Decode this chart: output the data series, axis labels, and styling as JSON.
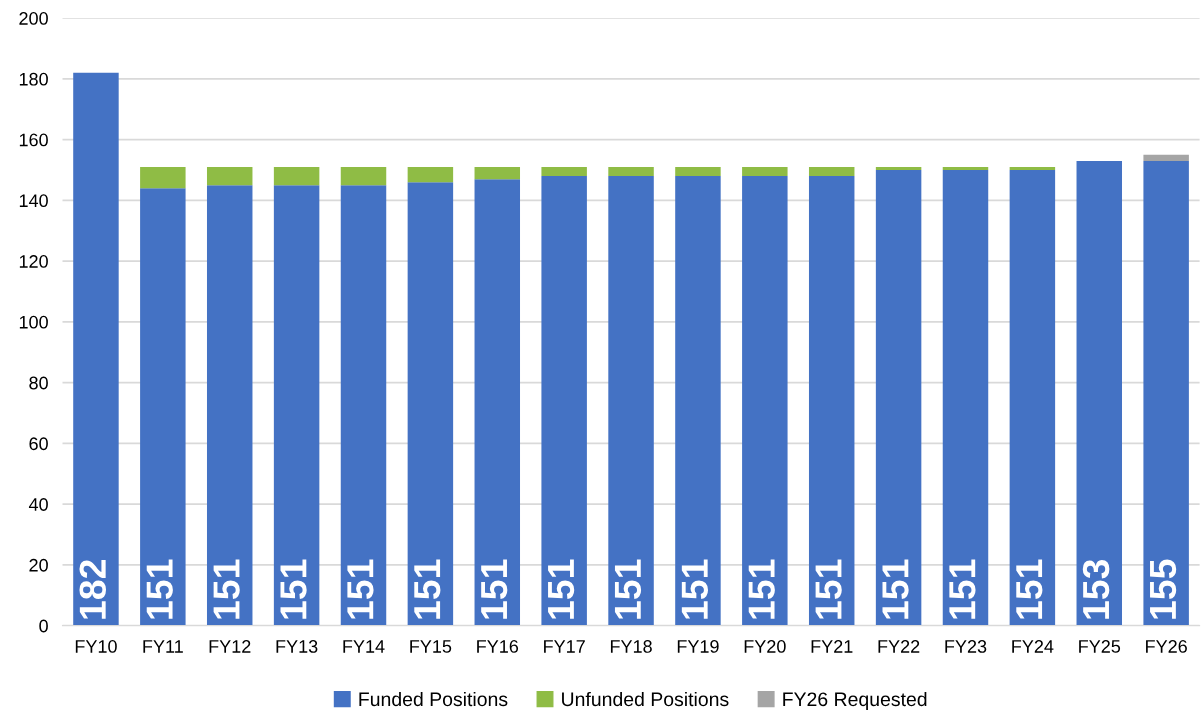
{
  "chart_data": {
    "type": "bar",
    "stacked": true,
    "categories": [
      "FY10",
      "FY11",
      "FY12",
      "FY13",
      "FY14",
      "FY15",
      "FY16",
      "FY17",
      "FY18",
      "FY19",
      "FY20",
      "FY21",
      "FY22",
      "FY23",
      "FY24",
      "FY25",
      "FY26"
    ],
    "series": [
      {
        "name": "Funded Positions",
        "color": "#4472c4",
        "values": [
          182,
          144,
          145,
          145,
          145,
          146,
          147,
          148,
          148,
          148,
          148,
          148,
          150,
          150,
          150,
          153,
          153
        ]
      },
      {
        "name": "Unfunded Positions",
        "color": "#8fbc45",
        "values": [
          0,
          7,
          6,
          6,
          6,
          5,
          4,
          3,
          3,
          3,
          3,
          3,
          1,
          1,
          1,
          0,
          0
        ]
      },
      {
        "name": "FY26 Requested",
        "color": "#a5a5a5",
        "values": [
          0,
          0,
          0,
          0,
          0,
          0,
          0,
          0,
          0,
          0,
          0,
          0,
          0,
          0,
          0,
          0,
          2
        ]
      }
    ],
    "totals": [
      "182",
      "151",
      "151",
      "151",
      "151",
      "151",
      "151",
      "151",
      "151",
      "151",
      "151",
      "151",
      "151",
      "151",
      "151",
      "153",
      "155"
    ],
    "ylim": [
      0,
      200
    ],
    "yticks": [
      0,
      20,
      40,
      60,
      80,
      100,
      120,
      140,
      160,
      180,
      200
    ],
    "grid": "y",
    "legend": "bottom"
  }
}
